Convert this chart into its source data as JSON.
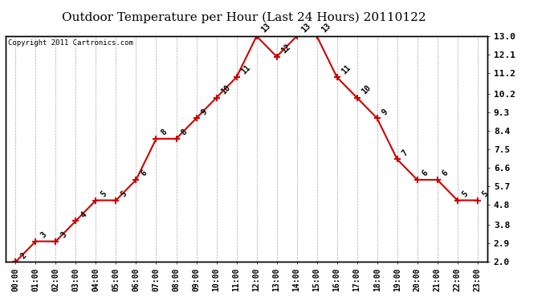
{
  "title": "Outdoor Temperature per Hour (Last 24 Hours) 20110122",
  "copyright": "Copyright 2011 Cartronics.com",
  "hours": [
    "00:00",
    "01:00",
    "02:00",
    "03:00",
    "04:00",
    "05:00",
    "06:00",
    "07:00",
    "08:00",
    "09:00",
    "10:00",
    "11:00",
    "12:00",
    "13:00",
    "14:00",
    "15:00",
    "16:00",
    "17:00",
    "18:00",
    "19:00",
    "20:00",
    "21:00",
    "22:00",
    "23:00"
  ],
  "values": [
    2,
    3,
    3,
    4,
    5,
    5,
    6,
    8,
    8,
    9,
    10,
    11,
    13,
    12,
    13,
    13,
    11,
    10,
    9,
    7,
    6,
    6,
    5,
    5
  ],
  "ylim": [
    2.0,
    13.0
  ],
  "yticks": [
    2.0,
    2.9,
    3.8,
    4.8,
    5.7,
    6.6,
    7.5,
    8.4,
    9.3,
    10.2,
    11.2,
    12.1,
    13.0
  ],
  "line_color": "#cc0000",
  "marker": "+",
  "marker_color": "#cc0000",
  "bg_color": "#ffffff",
  "grid_color": "#aaaaaa",
  "title_fontsize": 11,
  "copyright_fontsize": 6.5,
  "label_fontsize": 7,
  "tick_fontsize": 7,
  "ytick_fontsize": 8
}
